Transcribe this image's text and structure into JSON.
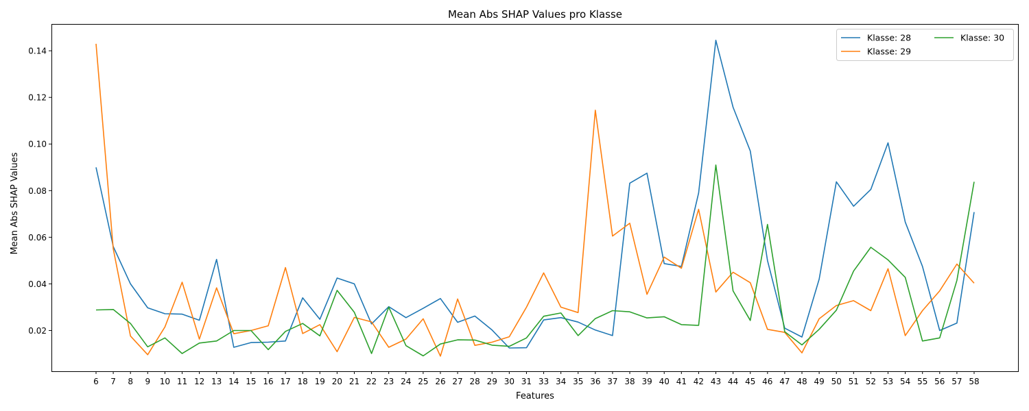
{
  "chart_data": {
    "type": "line",
    "title": "Mean Abs SHAP Values pro Klasse",
    "xlabel": "Features",
    "ylabel": "Mean Abs SHAP Values",
    "x": [
      6,
      7,
      8,
      9,
      10,
      11,
      12,
      13,
      14,
      15,
      16,
      17,
      18,
      19,
      20,
      21,
      22,
      23,
      24,
      25,
      26,
      27,
      28,
      29,
      30,
      31,
      33,
      34,
      35,
      36,
      37,
      38,
      39,
      40,
      41,
      42,
      43,
      44,
      45,
      46,
      47,
      48,
      49,
      50,
      51,
      52,
      53,
      54,
      55,
      56,
      57,
      58
    ],
    "yticks": [
      0.02,
      0.04,
      0.06,
      0.08,
      0.1,
      0.12,
      0.14
    ],
    "ytick_labels": [
      "0.02",
      "0.04",
      "0.06",
      "0.08",
      "0.10",
      "0.12",
      "0.14"
    ],
    "ylim": [
      0.0025,
      0.1515
    ],
    "grid": false,
    "legend_position": "top-right",
    "series": [
      {
        "name": "Klasse: 28",
        "color": "#1f77b4",
        "values": [
          0.09,
          0.056,
          0.04,
          0.0297,
          0.0272,
          0.027,
          0.0244,
          0.0505,
          0.0128,
          0.0148,
          0.015,
          0.0155,
          0.034,
          0.0248,
          0.0425,
          0.04,
          0.0228,
          0.0302,
          0.0255,
          0.0295,
          0.0337,
          0.0235,
          0.0262,
          0.0202,
          0.0125,
          0.0126,
          0.0245,
          0.0255,
          0.0236,
          0.0202,
          0.0178,
          0.0832,
          0.0875,
          0.0487,
          0.0475,
          0.079,
          0.1445,
          0.1158,
          0.097,
          0.05,
          0.021,
          0.0172,
          0.042,
          0.0838,
          0.0733,
          0.0805,
          0.1005,
          0.0665,
          0.0475,
          0.02,
          0.0232,
          0.0708
        ]
      },
      {
        "name": "Klasse: 29",
        "color": "#ff7f0e",
        "values": [
          0.143,
          0.055,
          0.0176,
          0.0096,
          0.0215,
          0.0407,
          0.0163,
          0.0383,
          0.0186,
          0.02,
          0.022,
          0.047,
          0.0187,
          0.0225,
          0.0109,
          0.0256,
          0.0237,
          0.0128,
          0.0163,
          0.025,
          0.009,
          0.0335,
          0.0136,
          0.015,
          0.0173,
          0.03,
          0.0447,
          0.03,
          0.0277,
          0.1145,
          0.0605,
          0.066,
          0.0355,
          0.0515,
          0.0467,
          0.072,
          0.0365,
          0.045,
          0.0405,
          0.0205,
          0.0192,
          0.0104,
          0.025,
          0.0307,
          0.0328,
          0.0285,
          0.0465,
          0.0178,
          0.0285,
          0.037,
          0.0485,
          0.0403
        ]
      },
      {
        "name": "Klasse: 30",
        "color": "#2ca02c",
        "values": [
          0.0288,
          0.029,
          0.023,
          0.013,
          0.0168,
          0.0101,
          0.0146,
          0.0155,
          0.02,
          0.02,
          0.0118,
          0.0196,
          0.023,
          0.0177,
          0.0372,
          0.0278,
          0.0101,
          0.03,
          0.0135,
          0.0091,
          0.0142,
          0.016,
          0.0159,
          0.0137,
          0.0132,
          0.0168,
          0.0261,
          0.0275,
          0.0178,
          0.0251,
          0.0285,
          0.028,
          0.0254,
          0.0259,
          0.0225,
          0.0222,
          0.091,
          0.037,
          0.0243,
          0.0655,
          0.0195,
          0.0138,
          0.0205,
          0.0287,
          0.0455,
          0.0557,
          0.0503,
          0.0428,
          0.0155,
          0.0168,
          0.0415,
          0.0838
        ]
      }
    ]
  }
}
